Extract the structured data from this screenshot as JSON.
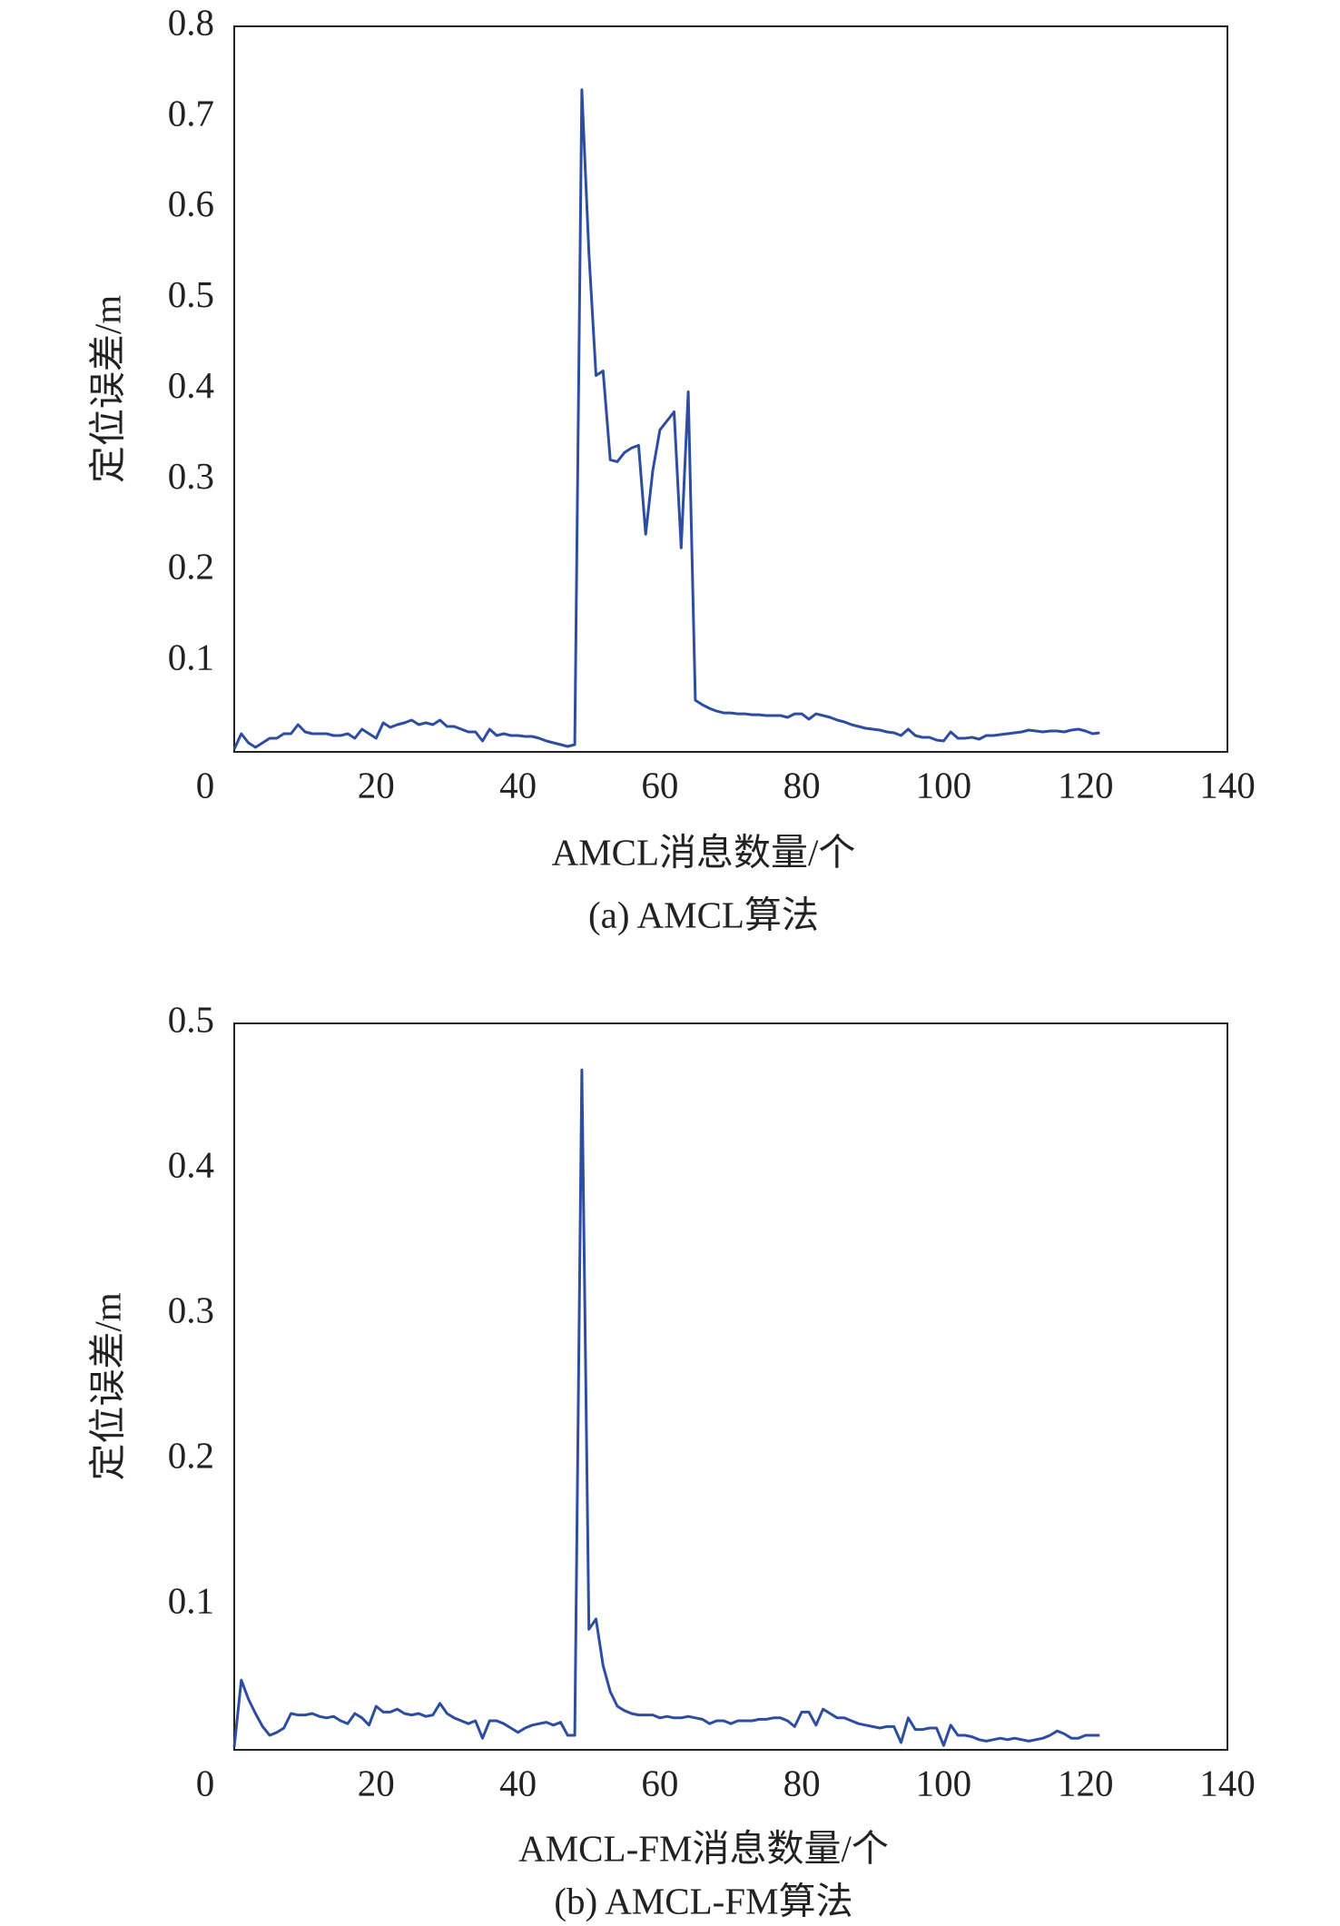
{
  "chart_data": [
    {
      "type": "line",
      "title": "(a) AMCL算法",
      "x_label": "AMCL消息数量/个",
      "y_label": "定位误差/m",
      "color": "#2d4ea0",
      "xlim": [
        0,
        140
      ],
      "xticks": [
        0,
        20,
        40,
        60,
        80,
        100,
        120,
        140
      ],
      "ylim": [
        0,
        0.8
      ],
      "yticks": [
        0.1,
        0.2,
        0.3,
        0.4,
        0.5,
        0.6,
        0.7,
        0.8
      ],
      "x": [
        0,
        1,
        2,
        3,
        4,
        5,
        6,
        7,
        8,
        9,
        10,
        11,
        12,
        13,
        14,
        15,
        16,
        17,
        18,
        19,
        20,
        21,
        22,
        23,
        24,
        25,
        26,
        27,
        28,
        29,
        30,
        31,
        32,
        33,
        34,
        35,
        36,
        37,
        38,
        39,
        40,
        41,
        42,
        43,
        44,
        45,
        46,
        47,
        48,
        49,
        50,
        51,
        52,
        53,
        54,
        55,
        56,
        57,
        58,
        59,
        60,
        61,
        62,
        63,
        64,
        65,
        66,
        67,
        68,
        69,
        70,
        71,
        72,
        73,
        74,
        75,
        76,
        77,
        78,
        79,
        80,
        81,
        82,
        83,
        84,
        85,
        86,
        87,
        88,
        89,
        90,
        91,
        92,
        93,
        94,
        95,
        96,
        97,
        98,
        99,
        100,
        101,
        102,
        103,
        104,
        105,
        106,
        107,
        108,
        109,
        110,
        111,
        112,
        113,
        114,
        115,
        116,
        117,
        118,
        119,
        120,
        121,
        122
      ],
      "values": [
        0.003,
        0.02,
        0.01,
        0.005,
        0.01,
        0.015,
        0.015,
        0.02,
        0.02,
        0.03,
        0.022,
        0.02,
        0.02,
        0.02,
        0.018,
        0.018,
        0.02,
        0.015,
        0.025,
        0.02,
        0.015,
        0.032,
        0.027,
        0.03,
        0.032,
        0.035,
        0.03,
        0.032,
        0.03,
        0.035,
        0.028,
        0.028,
        0.025,
        0.022,
        0.022,
        0.012,
        0.025,
        0.018,
        0.02,
        0.018,
        0.018,
        0.017,
        0.017,
        0.015,
        0.012,
        0.01,
        0.008,
        0.006,
        0.008,
        0.73,
        0.55,
        0.415,
        0.42,
        0.322,
        0.32,
        0.33,
        0.335,
        0.338,
        0.24,
        0.31,
        0.355,
        0.365,
        0.375,
        0.225,
        0.397,
        0.057,
        0.052,
        0.048,
        0.045,
        0.043,
        0.043,
        0.042,
        0.042,
        0.041,
        0.041,
        0.04,
        0.04,
        0.04,
        0.038,
        0.042,
        0.042,
        0.036,
        0.042,
        0.04,
        0.038,
        0.035,
        0.033,
        0.03,
        0.028,
        0.026,
        0.025,
        0.024,
        0.022,
        0.021,
        0.018,
        0.025,
        0.018,
        0.016,
        0.016,
        0.013,
        0.012,
        0.022,
        0.015,
        0.015,
        0.016,
        0.014,
        0.018,
        0.018,
        0.019,
        0.02,
        0.021,
        0.022,
        0.024,
        0.023,
        0.022,
        0.023,
        0.023,
        0.022,
        0.024,
        0.025,
        0.023,
        0.02,
        0.021
      ]
    },
    {
      "type": "line",
      "title": "(b) AMCL-FM算法",
      "x_label": "AMCL-FM消息数量/个",
      "y_label": "定位误差/m",
      "color": "#2d4ea0",
      "xlim": [
        0,
        140
      ],
      "xticks": [
        0,
        20,
        40,
        60,
        80,
        100,
        120,
        140
      ],
      "ylim": [
        0,
        0.5
      ],
      "yticks": [
        0.1,
        0.2,
        0.3,
        0.4,
        0.5
      ],
      "x": [
        0,
        1,
        2,
        3,
        4,
        5,
        6,
        7,
        8,
        9,
        10,
        11,
        12,
        13,
        14,
        15,
        16,
        17,
        18,
        19,
        20,
        21,
        22,
        23,
        24,
        25,
        26,
        27,
        28,
        29,
        30,
        31,
        32,
        33,
        34,
        35,
        36,
        37,
        38,
        39,
        40,
        41,
        42,
        43,
        44,
        45,
        46,
        47,
        48,
        49,
        50,
        51,
        52,
        53,
        54,
        55,
        56,
        57,
        58,
        59,
        60,
        61,
        62,
        63,
        64,
        65,
        66,
        67,
        68,
        69,
        70,
        71,
        72,
        73,
        74,
        75,
        76,
        77,
        78,
        79,
        80,
        81,
        82,
        83,
        84,
        85,
        86,
        87,
        88,
        89,
        90,
        91,
        92,
        93,
        94,
        95,
        96,
        97,
        98,
        99,
        100,
        101,
        102,
        103,
        104,
        105,
        106,
        107,
        108,
        109,
        110,
        111,
        112,
        113,
        114,
        115,
        116,
        117,
        118,
        119,
        120,
        121,
        122
      ],
      "values": [
        0.002,
        0.048,
        0.035,
        0.025,
        0.016,
        0.01,
        0.012,
        0.015,
        0.025,
        0.024,
        0.024,
        0.025,
        0.023,
        0.022,
        0.023,
        0.02,
        0.018,
        0.025,
        0.022,
        0.017,
        0.03,
        0.026,
        0.026,
        0.028,
        0.025,
        0.024,
        0.025,
        0.023,
        0.024,
        0.032,
        0.025,
        0.022,
        0.02,
        0.018,
        0.02,
        0.008,
        0.02,
        0.02,
        0.018,
        0.015,
        0.012,
        0.015,
        0.017,
        0.018,
        0.019,
        0.017,
        0.019,
        0.01,
        0.01,
        0.468,
        0.083,
        0.09,
        0.058,
        0.04,
        0.03,
        0.027,
        0.025,
        0.024,
        0.024,
        0.024,
        0.022,
        0.023,
        0.022,
        0.022,
        0.023,
        0.022,
        0.021,
        0.018,
        0.02,
        0.02,
        0.018,
        0.02,
        0.02,
        0.02,
        0.021,
        0.021,
        0.022,
        0.022,
        0.02,
        0.016,
        0.026,
        0.026,
        0.017,
        0.028,
        0.025,
        0.022,
        0.022,
        0.02,
        0.018,
        0.017,
        0.016,
        0.015,
        0.016,
        0.016,
        0.005,
        0.022,
        0.014,
        0.014,
        0.015,
        0.015,
        0.003,
        0.017,
        0.01,
        0.01,
        0.009,
        0.007,
        0.006,
        0.007,
        0.008,
        0.007,
        0.008,
        0.007,
        0.006,
        0.007,
        0.008,
        0.01,
        0.013,
        0.011,
        0.008,
        0.008,
        0.01,
        0.01,
        0.01
      ]
    }
  ]
}
